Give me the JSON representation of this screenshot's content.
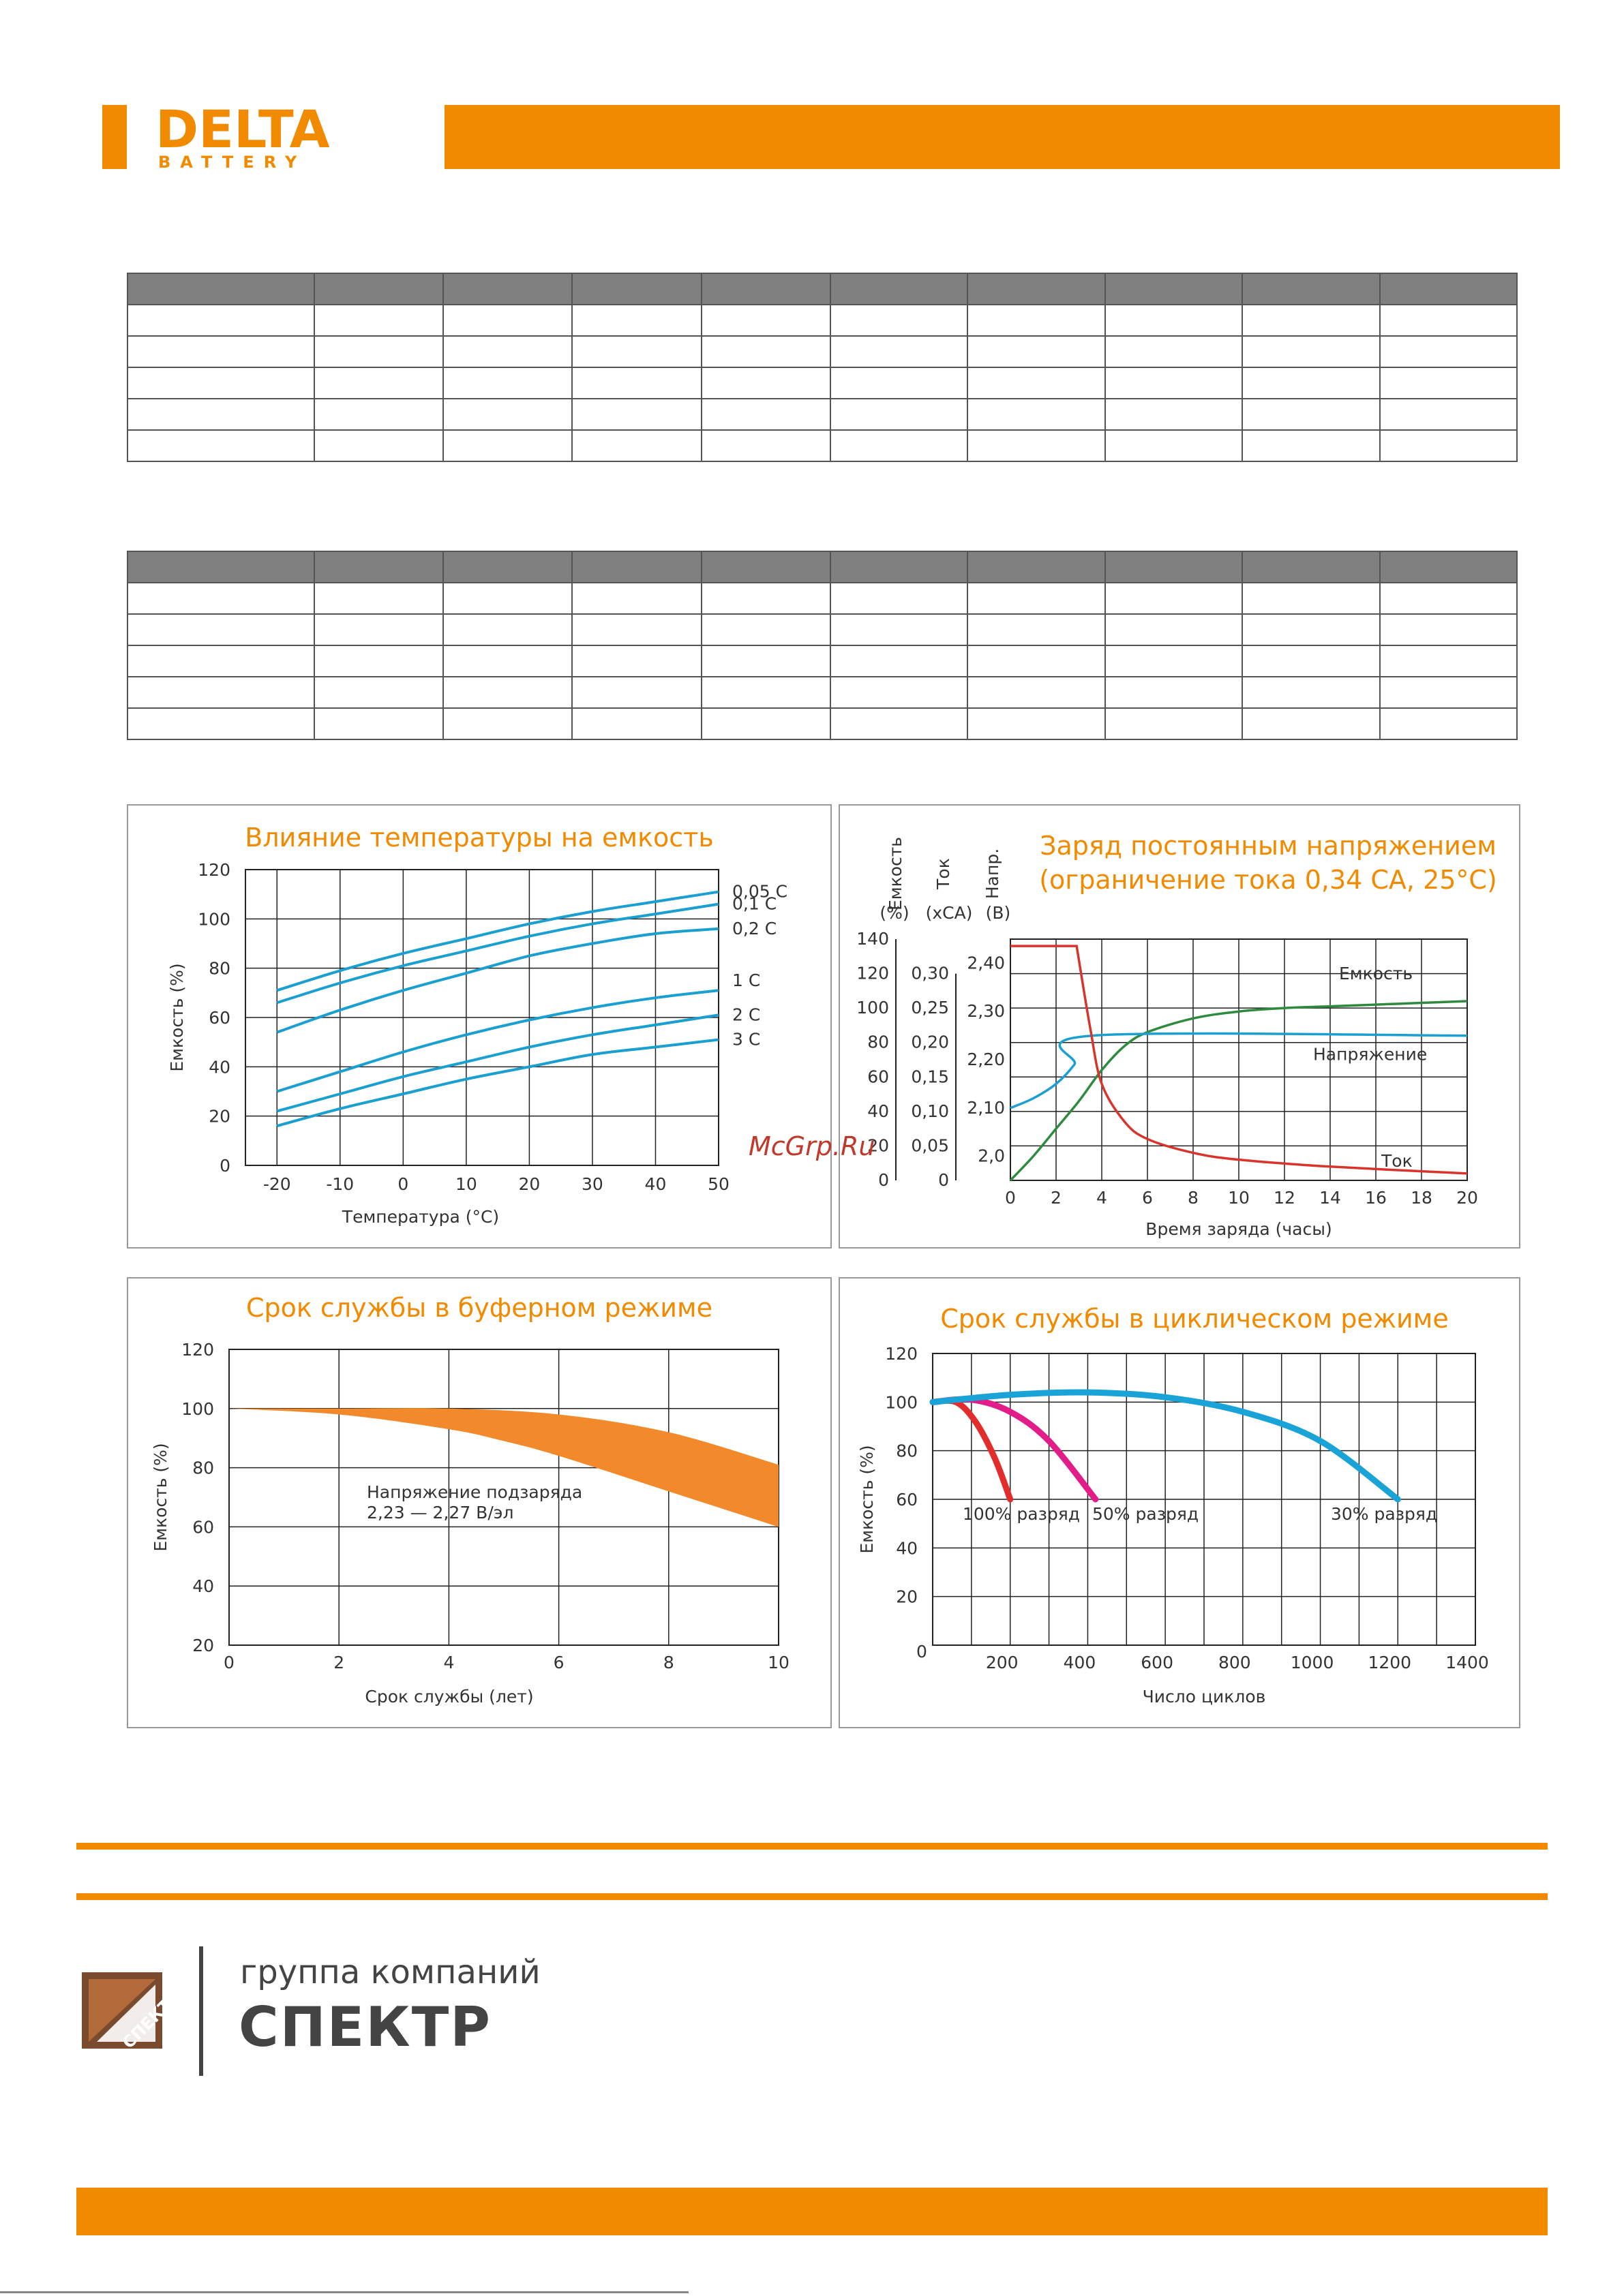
{
  "header": {
    "brand_main": "DELTA",
    "brand_sub": "BATTERY",
    "brand_color": "#f28a00"
  },
  "tables": {
    "table1_rows": 6,
    "table2_rows": 6
  },
  "watermark": "McGrp.Ru",
  "footer": {
    "group_label": "группа компаний",
    "brand": "СПЕКТР",
    "logo_text": "СПЕКТР"
  },
  "chart_data": [
    {
      "type": "line",
      "title": "Влияние температуры на емкость",
      "xlabel": "Температура (°C)",
      "ylabel": "Емкость (%)",
      "xlim": [
        -25,
        50
      ],
      "ylim": [
        0,
        120
      ],
      "xticks": [
        -20,
        -10,
        0,
        10,
        20,
        30,
        40,
        50
      ],
      "yticks": [
        0,
        20,
        40,
        60,
        80,
        100,
        120
      ],
      "series": [
        {
          "name": "0,05 C",
          "x": [
            -20,
            -10,
            0,
            10,
            20,
            30,
            40,
            50
          ],
          "y": [
            71,
            79,
            86,
            92,
            98,
            103,
            107,
            111
          ]
        },
        {
          "name": "0,1 C",
          "x": [
            -20,
            -10,
            0,
            10,
            20,
            30,
            40,
            50
          ],
          "y": [
            66,
            74,
            81,
            87,
            93,
            98,
            102,
            106
          ]
        },
        {
          "name": "0,2 C",
          "x": [
            -20,
            -10,
            0,
            10,
            20,
            30,
            40,
            50
          ],
          "y": [
            54,
            63,
            71,
            78,
            85,
            90,
            94,
            96
          ]
        },
        {
          "name": "1 C",
          "x": [
            -20,
            -10,
            0,
            10,
            20,
            30,
            40,
            50
          ],
          "y": [
            30,
            38,
            46,
            53,
            59,
            64,
            68,
            71
          ]
        },
        {
          "name": "2 C",
          "x": [
            -20,
            -10,
            0,
            10,
            20,
            30,
            40,
            50
          ],
          "y": [
            22,
            29,
            36,
            42,
            48,
            53,
            57,
            61
          ]
        },
        {
          "name": "3 C",
          "x": [
            -20,
            -10,
            0,
            10,
            20,
            30,
            40,
            50
          ],
          "y": [
            16,
            23,
            29,
            35,
            40,
            45,
            48,
            51
          ]
        }
      ]
    },
    {
      "type": "line",
      "title": "Заряд постоянным напряжением",
      "subtitle": "(ограничение тока 0,34 CA, 25°C)",
      "xlabel": "Время заряда (часы)",
      "axis_headers": [
        "Емкость",
        "Ток",
        "Напр."
      ],
      "axis_units": [
        "(%)",
        "(xCA)",
        "(B)"
      ],
      "xlim": [
        0,
        20
      ],
      "xticks": [
        0,
        2,
        4,
        6,
        8,
        10,
        12,
        14,
        16,
        18,
        20
      ],
      "capacity_ticks": [
        "0",
        "20",
        "40",
        "60",
        "80",
        "100",
        "120",
        "140"
      ],
      "current_ticks": [
        "0",
        "0,05",
        "0,10",
        "0,15",
        "0,20",
        "0,25",
        "0,30"
      ],
      "voltage_ticks": [
        "2,0",
        "2,10",
        "2,20",
        "2,30",
        "2,40"
      ],
      "series": [
        {
          "name": "Емкость",
          "axis": "capacity",
          "color": "#2e8b3e",
          "x": [
            0,
            1,
            2,
            3,
            4,
            5,
            6,
            8,
            10,
            12,
            14,
            16,
            18,
            20
          ],
          "y": [
            0,
            14,
            30,
            46,
            64,
            78,
            86,
            94,
            98,
            100,
            101,
            102,
            103,
            104
          ]
        },
        {
          "name": "Напряжение",
          "axis": "voltage",
          "color": "#1a9fd1",
          "x": [
            0,
            1,
            2,
            2.8,
            3.6,
            20
          ],
          "y": [
            2.1,
            2.12,
            2.15,
            2.19,
            2.25,
            2.25
          ]
        },
        {
          "name": "Ток",
          "axis": "current",
          "color": "#d9342b",
          "x": [
            0,
            2.9,
            3.5,
            4,
            5,
            6,
            8,
            10,
            14,
            20
          ],
          "y": [
            0.34,
            0.34,
            0.22,
            0.14,
            0.085,
            0.06,
            0.04,
            0.03,
            0.02,
            0.01
          ]
        }
      ]
    },
    {
      "type": "area",
      "title": "Срок службы в буферном режиме",
      "xlabel": "Срок службы (лет)",
      "ylabel": "Емкость (%)",
      "xlim": [
        0,
        10
      ],
      "ylim": [
        20,
        120
      ],
      "xticks": [
        0,
        2,
        4,
        6,
        8,
        10
      ],
      "yticks": [
        20,
        40,
        60,
        80,
        100,
        120
      ],
      "annotation_line1": "Напряжение подзаряда",
      "annotation_line2": "2,23 — 2,27 В/эл",
      "band_color": "#f28a2b",
      "band_upper": {
        "x": [
          0,
          2,
          4,
          6,
          8,
          10
        ],
        "y": [
          100,
          100,
          100,
          98,
          92,
          81
        ]
      },
      "band_lower": {
        "x": [
          0,
          2,
          4,
          5,
          6,
          8,
          10
        ],
        "y": [
          100,
          98,
          93,
          89,
          84,
          72,
          60
        ]
      }
    },
    {
      "type": "line",
      "title": "Срок службы в циклическом режиме",
      "xlabel": "Число циклов",
      "ylabel": "Емкость (%)",
      "xlim": [
        0,
        1400
      ],
      "ylim": [
        0,
        120
      ],
      "xticks": [
        200,
        400,
        600,
        800,
        1000,
        1200,
        1400
      ],
      "yticks": [
        0,
        20,
        40,
        60,
        80,
        100,
        120
      ],
      "series": [
        {
          "name": "100% разряд",
          "color": "#e32d2d",
          "x": [
            0,
            60,
            110,
            160,
            200
          ],
          "y": [
            100,
            100,
            92,
            77,
            60
          ]
        },
        {
          "name": "50% разряд",
          "color": "#e21d8a",
          "x": [
            0,
            100,
            200,
            300,
            420
          ],
          "y": [
            100,
            101,
            96,
            84,
            60
          ]
        },
        {
          "name": "30% разряд",
          "color": "#1aa3d6",
          "x": [
            0,
            200,
            400,
            600,
            800,
            1000,
            1200
          ],
          "y": [
            100,
            103,
            104,
            102,
            96,
            84,
            60
          ]
        }
      ]
    }
  ]
}
